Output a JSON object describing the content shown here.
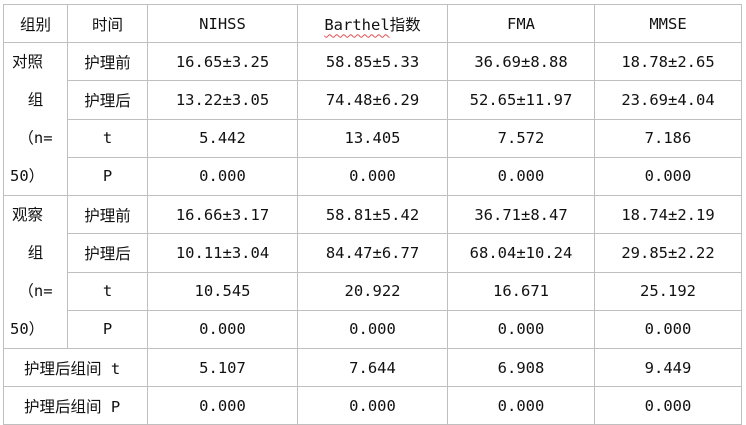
{
  "header": {
    "group": "组别",
    "time": "时间",
    "nihss": "NIHSS",
    "barthel_word": "Barthel",
    "barthel_suffix": "指数",
    "fma": "FMA",
    "mmse": "MMSE"
  },
  "control": {
    "group_lines": [
      "对照",
      "组",
      "（n=",
      "50）"
    ],
    "rows": [
      {
        "time": "护理前",
        "nihss": "16.65±3.25",
        "barthel": "58.85±5.33",
        "fma": "36.69±8.88",
        "mmse": "18.78±2.65"
      },
      {
        "time": "护理后",
        "nihss": "13.22±3.05",
        "barthel": "74.48±6.29",
        "fma": "52.65±11.97",
        "mmse": "23.69±4.04"
      },
      {
        "time": "t",
        "nihss": "5.442",
        "barthel": "13.405",
        "fma": "7.572",
        "mmse": "7.186"
      },
      {
        "time": "P",
        "nihss": "0.000",
        "barthel": "0.000",
        "fma": "0.000",
        "mmse": "0.000"
      }
    ]
  },
  "observe": {
    "group_lines": [
      "观察",
      "组",
      "（n=",
      "50）"
    ],
    "rows": [
      {
        "time": "护理前",
        "nihss": "16.66±3.17",
        "barthel": "58.81±5.42",
        "fma": "36.71±8.47",
        "mmse": "18.74±2.19"
      },
      {
        "time": "护理后",
        "nihss": "10.11±3.04",
        "barthel": "84.47±6.77",
        "fma": "68.04±10.24",
        "mmse": "29.85±2.22"
      },
      {
        "time": "t",
        "nihss": "10.545",
        "barthel": "20.922",
        "fma": "16.671",
        "mmse": "25.192"
      },
      {
        "time": "P",
        "nihss": "0.000",
        "barthel": "0.000",
        "fma": "0.000",
        "mmse": "0.000"
      }
    ]
  },
  "between": [
    {
      "label": "护理后组间 t",
      "nihss": "5.107",
      "barthel": "7.644",
      "fma": "6.908",
      "mmse": "9.449"
    },
    {
      "label": "护理后组间 P",
      "nihss": "0.000",
      "barthel": "0.000",
      "fma": "0.000",
      "mmse": "0.000"
    }
  ]
}
